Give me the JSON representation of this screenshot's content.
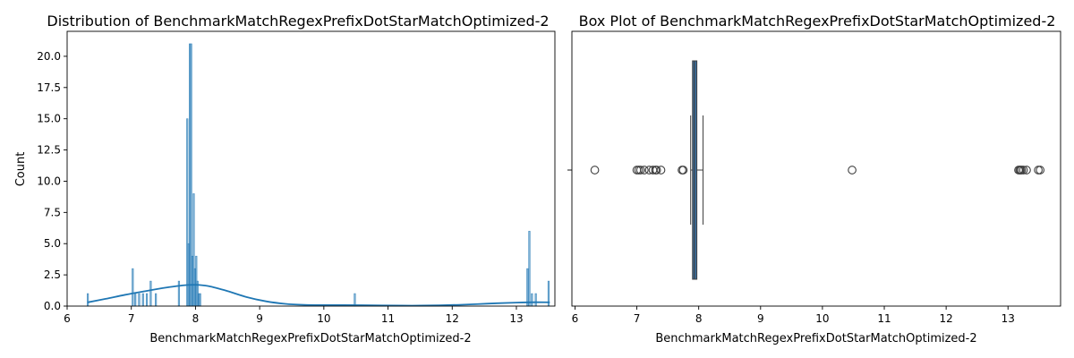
{
  "colors": {
    "bar": "#1f77b4",
    "kde": "#1f77b4",
    "box_fill": "#3a6fa0",
    "line": "#3f3f3f",
    "axes": "#000000"
  },
  "chart_data": [
    {
      "type": "histogram",
      "title": "Distribution of BenchmarkMatchRegexPrefixDotStarMatchOptimized-2",
      "xlabel": "BenchmarkMatchRegexPrefixDotStarMatchOptimized-2",
      "ylabel": "Count",
      "xlim": [
        6.0,
        13.6
      ],
      "ylim": [
        0,
        22
      ],
      "xticks": [
        6,
        7,
        8,
        9,
        10,
        11,
        12,
        13
      ],
      "yticks": [
        0.0,
        2.5,
        5.0,
        7.5,
        10.0,
        12.5,
        15.0,
        17.5,
        20.0
      ],
      "ytick_labels": [
        "0.0",
        "2.5",
        "5.0",
        "7.5",
        "10.0",
        "12.5",
        "15.0",
        "17.5",
        "20.0"
      ],
      "bins": [
        {
          "x": 6.32,
          "count": 1
        },
        {
          "x": 7.02,
          "count": 3
        },
        {
          "x": 7.06,
          "count": 1
        },
        {
          "x": 7.12,
          "count": 1
        },
        {
          "x": 7.18,
          "count": 1
        },
        {
          "x": 7.24,
          "count": 1
        },
        {
          "x": 7.3,
          "count": 2
        },
        {
          "x": 7.38,
          "count": 1
        },
        {
          "x": 7.74,
          "count": 2
        },
        {
          "x": 7.87,
          "count": 15
        },
        {
          "x": 7.89,
          "count": 5
        },
        {
          "x": 7.91,
          "count": 21
        },
        {
          "x": 7.93,
          "count": 21
        },
        {
          "x": 7.95,
          "count": 4
        },
        {
          "x": 7.97,
          "count": 9
        },
        {
          "x": 7.99,
          "count": 3
        },
        {
          "x": 8.01,
          "count": 4
        },
        {
          "x": 8.03,
          "count": 2
        },
        {
          "x": 8.05,
          "count": 1
        },
        {
          "x": 8.07,
          "count": 1
        },
        {
          "x": 10.48,
          "count": 1
        },
        {
          "x": 13.17,
          "count": 3
        },
        {
          "x": 13.2,
          "count": 6
        },
        {
          "x": 13.24,
          "count": 1
        },
        {
          "x": 13.3,
          "count": 1
        },
        {
          "x": 13.5,
          "count": 2
        }
      ],
      "bin_width": 0.018,
      "kde": {
        "x": [
          6.32,
          6.6,
          6.9,
          7.2,
          7.5,
          7.8,
          8.0,
          8.2,
          8.5,
          8.8,
          9.1,
          9.4,
          9.7,
          10.0,
          10.3,
          10.6,
          10.9,
          11.2,
          11.5,
          11.8,
          12.1,
          12.4,
          12.7,
          13.0,
          13.3,
          13.52
        ],
        "y": [
          0.3,
          0.58,
          0.9,
          1.18,
          1.45,
          1.66,
          1.7,
          1.6,
          1.2,
          0.72,
          0.38,
          0.18,
          0.1,
          0.08,
          0.08,
          0.07,
          0.05,
          0.04,
          0.04,
          0.06,
          0.1,
          0.16,
          0.23,
          0.28,
          0.31,
          0.3
        ]
      }
    },
    {
      "type": "box",
      "title": "Box Plot of BenchmarkMatchRegexPrefixDotStarMatchOptimized-2",
      "xlabel": "BenchmarkMatchRegexPrefixDotStarMatchOptimized-2",
      "xlim": [
        5.95,
        13.85
      ],
      "xticks": [
        6,
        7,
        8,
        9,
        10,
        11,
        12,
        13
      ],
      "q1": 7.9,
      "median": 7.93,
      "q3": 7.97,
      "whisker_low": 7.87,
      "whisker_high": 8.07,
      "outliers": [
        6.32,
        7.0,
        7.03,
        7.06,
        7.12,
        7.2,
        7.26,
        7.3,
        7.32,
        7.39,
        7.73,
        7.75,
        10.48,
        13.17,
        13.19,
        13.2,
        13.22,
        13.25,
        13.3,
        13.49,
        13.52
      ]
    }
  ]
}
